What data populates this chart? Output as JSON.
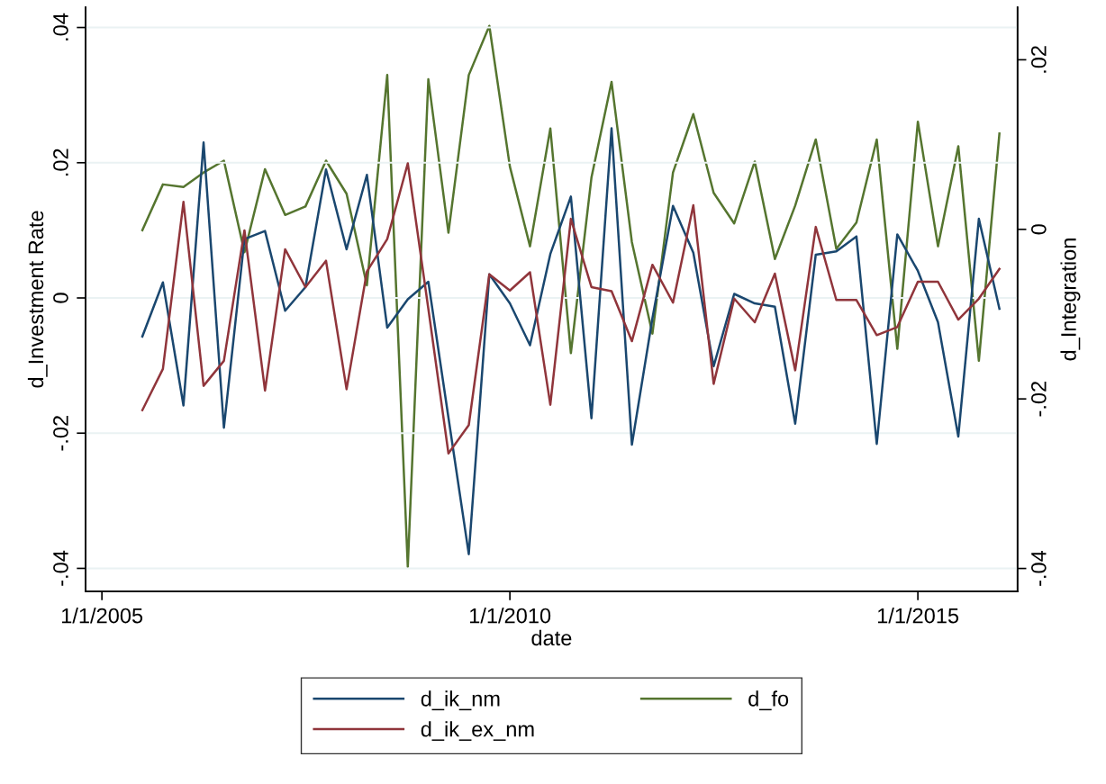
{
  "chart_data": {
    "type": "line",
    "xlabel": "date",
    "ylabel": "d_Investment Rate",
    "y2label": "d_Integration",
    "x": [
      "2005-07-01",
      "2005-10-01",
      "2006-01-01",
      "2006-04-01",
      "2006-07-01",
      "2006-10-01",
      "2007-01-01",
      "2007-04-01",
      "2007-07-01",
      "2007-10-01",
      "2008-01-01",
      "2008-04-01",
      "2008-07-01",
      "2008-10-01",
      "2009-01-01",
      "2009-04-01",
      "2009-07-01",
      "2009-10-01",
      "2010-01-01",
      "2010-04-01",
      "2010-07-01",
      "2010-10-01",
      "2011-01-01",
      "2011-04-01",
      "2011-07-01",
      "2011-10-01",
      "2012-01-01",
      "2012-04-01",
      "2012-07-01",
      "2012-10-01",
      "2013-01-01",
      "2013-04-01",
      "2013-07-01",
      "2013-10-01",
      "2014-01-01",
      "2014-04-01",
      "2014-07-01",
      "2014-10-01",
      "2015-01-01",
      "2015-04-01",
      "2015-07-01",
      "2015-10-01",
      "2016-01-01"
    ],
    "series": [
      {
        "name": "d_ik_nm",
        "color": "#1a476f",
        "values": [
          -0.0057,
          0.0023,
          -0.0159,
          0.023,
          -0.0192,
          0.0087,
          0.0099,
          -0.0019,
          0.0016,
          0.019,
          0.0072,
          0.0182,
          -0.0044,
          -0.0002,
          0.0024,
          -0.0177,
          -0.0379,
          0.0035,
          -0.0008,
          -0.007,
          0.0065,
          0.015,
          -0.0178,
          0.0251,
          -0.0217,
          -0.003,
          0.0136,
          0.0067,
          -0.0101,
          0.0006,
          -0.0008,
          -0.0013,
          -0.0186,
          0.0064,
          0.0069,
          0.0091,
          -0.0216,
          0.0094,
          0.004,
          -0.0036,
          -0.0205,
          0.0117,
          -0.0016
        ]
      },
      {
        "name": "d_ik_ex_nm",
        "color": "#90353b",
        "values": [
          -0.0166,
          -0.0105,
          0.0142,
          -0.013,
          -0.0093,
          0.01,
          -0.0137,
          0.0072,
          0.0016,
          0.0055,
          -0.0135,
          0.0039,
          0.0087,
          0.0199,
          -0.0016,
          -0.023,
          -0.0188,
          0.0035,
          0.0011,
          0.0038,
          -0.0158,
          0.0117,
          0.0016,
          0.001,
          -0.0064,
          0.0049,
          -0.0007,
          0.0137,
          -0.0127,
          -0.0001,
          -0.0036,
          0.0036,
          -0.0107,
          0.0105,
          -0.0003,
          -0.0003,
          -0.0055,
          -0.0043,
          0.0024,
          0.0024,
          -0.0032,
          -0.0001,
          0.0043
        ]
      },
      {
        "name": "d_fo",
        "color": "#55752f",
        "axis": "y2",
        "values": [
          -0.0001,
          0.0053,
          0.005,
          0.0067,
          0.0081,
          -0.0027,
          0.0071,
          0.0017,
          0.0027,
          0.0081,
          0.0042,
          -0.0066,
          0.0182,
          -0.0398,
          0.0177,
          -0.0004,
          0.0182,
          0.024,
          0.0074,
          -0.002,
          0.0119,
          -0.0146,
          0.0061,
          0.0174,
          -0.0015,
          -0.0123,
          0.0067,
          0.0136,
          0.0043,
          0.0007,
          0.008,
          -0.0035,
          0.0028,
          0.0106,
          -0.0023,
          0.0008,
          0.0106,
          -0.0141,
          0.0127,
          -0.002,
          0.0098,
          -0.0155,
          0.0113
        ]
      }
    ],
    "xlim": [
      "2004-10-20",
      "2016-03-22"
    ],
    "xticks": [
      {
        "value": "2005-01-01",
        "label": "1/1/2005"
      },
      {
        "value": "2010-01-01",
        "label": "1/1/2010"
      },
      {
        "value": "2015-01-01",
        "label": "1/1/2015"
      }
    ],
    "ylim": [
      -0.0434,
      0.043
    ],
    "yticks": [
      {
        "value": -0.04,
        "label": "-.04"
      },
      {
        "value": -0.02,
        "label": "-.02"
      },
      0,
      {
        "value": 0.02,
        "label": ".02"
      },
      {
        "value": 0.04,
        "label": ".04"
      }
    ],
    "y2lim": [
      -0.0427,
      0.0262
    ],
    "y2ticks": [
      {
        "value": -0.04,
        "label": "-.04"
      },
      {
        "value": -0.02,
        "label": "-.02"
      },
      0,
      {
        "value": 0.02,
        "label": ".02"
      }
    ],
    "grid": "y",
    "legend": "bottom",
    "marker": "none",
    "line_style": "solid"
  }
}
